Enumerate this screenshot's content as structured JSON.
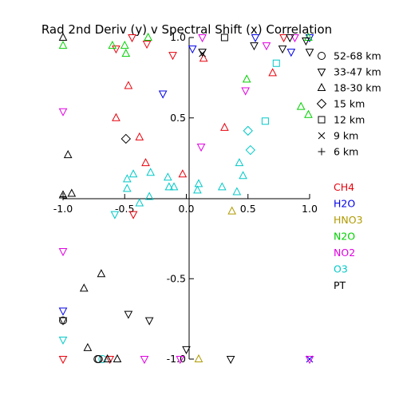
{
  "chart_data": {
    "type": "scatter",
    "title": "Rad 2nd Deriv (y) v Spectral Shift (x) Correlation",
    "xlabel": "",
    "ylabel": "",
    "xlim": [
      -1.0,
      1.0
    ],
    "ylim": [
      -1.0,
      1.0
    ],
    "x_ticks": [
      -1.0,
      -0.5,
      0.0,
      0.5,
      1.0
    ],
    "y_ticks": [
      -1.0,
      -0.5,
      0.5,
      1.0
    ],
    "x_tick_labels": [
      "-1.0",
      "-0.5",
      "0.0",
      "0.5",
      "1.0"
    ],
    "y_tick_labels": [
      "-1.0",
      "-0.5",
      "0.5",
      "1.0"
    ],
    "grid": false,
    "symbol_legend": [
      {
        "marker": "circle",
        "label": "52-68 km"
      },
      {
        "marker": "triangle-down",
        "label": "33-47 km"
      },
      {
        "marker": "triangle-up",
        "label": "18-30 km"
      },
      {
        "marker": "diamond",
        "label": "15 km"
      },
      {
        "marker": "square",
        "label": "12 km"
      },
      {
        "marker": "cross",
        "label": "9 km"
      },
      {
        "marker": "plus",
        "label": "6 km"
      }
    ],
    "color_legend": [
      {
        "label": "CH4",
        "color": "#e8000b"
      },
      {
        "label": "H2O",
        "color": "#0000e6"
      },
      {
        "label": "HNO3",
        "color": "#b09a00"
      },
      {
        "label": "N2O",
        "color": "#00d000"
      },
      {
        "label": "NO2",
        "color": "#e000e0"
      },
      {
        "label": "O3",
        "color": "#00c8c8"
      },
      {
        "label": "PT",
        "color": "#000000"
      }
    ],
    "series": [
      {
        "name": "CH4",
        "color": "#e8000b",
        "points": [
          {
            "x": -0.44,
            "y": 1.0,
            "m": "triangle-down"
          },
          {
            "x": -0.32,
            "y": 0.96,
            "m": "triangle-down"
          },
          {
            "x": -0.57,
            "y": 0.93,
            "m": "triangle-down"
          },
          {
            "x": -0.11,
            "y": 0.89,
            "m": "triangle-down"
          },
          {
            "x": -0.43,
            "y": -0.1,
            "m": "triangle-down"
          },
          {
            "x": -1.0,
            "y": -1.0,
            "m": "triangle-down"
          },
          {
            "x": -0.62,
            "y": -1.0,
            "m": "triangle-down"
          },
          {
            "x": 0.79,
            "y": 1.0,
            "m": "triangle-down"
          },
          {
            "x": -0.47,
            "y": 0.7,
            "m": "triangle-up"
          },
          {
            "x": -0.57,
            "y": 0.5,
            "m": "triangle-up"
          },
          {
            "x": -0.38,
            "y": 0.38,
            "m": "triangle-up"
          },
          {
            "x": -0.33,
            "y": 0.22,
            "m": "triangle-up"
          },
          {
            "x": -0.03,
            "y": 0.15,
            "m": "triangle-up"
          },
          {
            "x": 0.14,
            "y": 0.87,
            "m": "triangle-up"
          },
          {
            "x": 0.31,
            "y": 0.44,
            "m": "triangle-up"
          },
          {
            "x": 0.7,
            "y": 0.78,
            "m": "triangle-up"
          }
        ]
      },
      {
        "name": "H2O",
        "color": "#0000e6",
        "points": [
          {
            "x": 0.05,
            "y": 0.93,
            "m": "triangle-down"
          },
          {
            "x": -0.19,
            "y": 0.65,
            "m": "triangle-down"
          },
          {
            "x": 0.56,
            "y": 1.0,
            "m": "triangle-down"
          },
          {
            "x": 0.85,
            "y": 0.91,
            "m": "triangle-down"
          },
          {
            "x": -1.0,
            "y": -0.7,
            "m": "triangle-down"
          },
          {
            "x": 1.0,
            "y": 1.0,
            "m": "triangle-down"
          },
          {
            "x": 1.0,
            "y": -1.0,
            "m": "cross"
          }
        ]
      },
      {
        "name": "HNO3",
        "color": "#b09a00",
        "points": [
          {
            "x": 0.37,
            "y": -0.08,
            "m": "triangle-up"
          },
          {
            "x": 0.1,
            "y": -1.0,
            "m": "triangle-up"
          }
        ]
      },
      {
        "name": "N2O",
        "color": "#00d000",
        "points": [
          {
            "x": -1.0,
            "y": 0.95,
            "m": "triangle-up"
          },
          {
            "x": -0.6,
            "y": 0.95,
            "m": "triangle-up"
          },
          {
            "x": -0.5,
            "y": 0.95,
            "m": "triangle-up"
          },
          {
            "x": -0.31,
            "y": 1.0,
            "m": "triangle-up"
          },
          {
            "x": -0.49,
            "y": 0.9,
            "m": "triangle-up"
          },
          {
            "x": 0.49,
            "y": 0.74,
            "m": "triangle-up"
          },
          {
            "x": 0.93,
            "y": 0.57,
            "m": "triangle-up"
          },
          {
            "x": 0.99,
            "y": 0.52,
            "m": "triangle-up"
          },
          {
            "x": 0.99,
            "y": 1.0,
            "m": "triangle-up"
          }
        ]
      },
      {
        "name": "NO2",
        "color": "#e000e0",
        "points": [
          {
            "x": -1.0,
            "y": 0.54,
            "m": "triangle-down"
          },
          {
            "x": -1.0,
            "y": -0.33,
            "m": "triangle-down"
          },
          {
            "x": -0.34,
            "y": -1.0,
            "m": "triangle-down"
          },
          {
            "x": 0.13,
            "y": 1.0,
            "m": "triangle-down"
          },
          {
            "x": 0.65,
            "y": 0.95,
            "m": "triangle-down"
          },
          {
            "x": 0.48,
            "y": 0.67,
            "m": "triangle-down"
          },
          {
            "x": 0.12,
            "y": 0.32,
            "m": "triangle-down"
          },
          {
            "x": 0.88,
            "y": 1.0,
            "m": "triangle-down"
          },
          {
            "x": -0.05,
            "y": -1.0,
            "m": "triangle-down"
          },
          {
            "x": 1.0,
            "y": -1.0,
            "m": "triangle-down"
          }
        ]
      },
      {
        "name": "O3",
        "color": "#00c8c8",
        "points": [
          {
            "x": -0.48,
            "y": 0.12,
            "m": "triangle-up"
          },
          {
            "x": -0.43,
            "y": 0.15,
            "m": "triangle-up"
          },
          {
            "x": -0.29,
            "y": 0.16,
            "m": "triangle-up"
          },
          {
            "x": -0.15,
            "y": 0.13,
            "m": "triangle-up"
          },
          {
            "x": -0.14,
            "y": 0.07,
            "m": "triangle-up"
          },
          {
            "x": -0.48,
            "y": 0.06,
            "m": "triangle-up"
          },
          {
            "x": -0.3,
            "y": 0.01,
            "m": "triangle-up"
          },
          {
            "x": -0.38,
            "y": -0.03,
            "m": "triangle-up"
          },
          {
            "x": 0.1,
            "y": 0.09,
            "m": "triangle-up"
          },
          {
            "x": 0.09,
            "y": 0.05,
            "m": "triangle-up"
          },
          {
            "x": 0.29,
            "y": 0.07,
            "m": "triangle-up"
          },
          {
            "x": 0.43,
            "y": 0.22,
            "m": "triangle-up"
          },
          {
            "x": 0.41,
            "y": 0.04,
            "m": "triangle-up"
          },
          {
            "x": 0.46,
            "y": 0.14,
            "m": "triangle-up"
          },
          {
            "x": -0.1,
            "y": 0.07,
            "m": "triangle-up"
          },
          {
            "x": -0.58,
            "y": -0.1,
            "m": "triangle-down"
          },
          {
            "x": -1.0,
            "y": -0.88,
            "m": "triangle-down"
          },
          {
            "x": 0.5,
            "y": 0.42,
            "m": "diamond"
          },
          {
            "x": 0.52,
            "y": 0.3,
            "m": "diamond"
          },
          {
            "x": 0.64,
            "y": 0.48,
            "m": "square"
          },
          {
            "x": 0.73,
            "y": 0.84,
            "m": "square"
          },
          {
            "x": -0.68,
            "y": -1.0,
            "m": "circle"
          }
        ]
      },
      {
        "name": "PT",
        "color": "#000000",
        "points": [
          {
            "x": -1.0,
            "y": 1.0,
            "m": "triangle-up"
          },
          {
            "x": -0.96,
            "y": 0.27,
            "m": "triangle-up"
          },
          {
            "x": -0.93,
            "y": 0.03,
            "m": "triangle-up"
          },
          {
            "x": -1.0,
            "y": 0.02,
            "m": "triangle-up"
          },
          {
            "x": -0.83,
            "y": -0.56,
            "m": "triangle-up"
          },
          {
            "x": -0.69,
            "y": -0.47,
            "m": "triangle-up"
          },
          {
            "x": -0.8,
            "y": -0.93,
            "m": "triangle-up"
          },
          {
            "x": -0.56,
            "y": -1.0,
            "m": "triangle-up"
          },
          {
            "x": -0.64,
            "y": -1.0,
            "m": "triangle-up"
          },
          {
            "x": -0.47,
            "y": -0.72,
            "m": "triangle-down"
          },
          {
            "x": -0.3,
            "y": -0.76,
            "m": "triangle-down"
          },
          {
            "x": -1.0,
            "y": -0.76,
            "m": "triangle-down"
          },
          {
            "x": 0.0,
            "y": -0.94,
            "m": "triangle-down"
          },
          {
            "x": 0.36,
            "y": -1.0,
            "m": "triangle-down"
          },
          {
            "x": 0.13,
            "y": 0.91,
            "m": "triangle-down"
          },
          {
            "x": 0.55,
            "y": 0.95,
            "m": "triangle-down"
          },
          {
            "x": 0.97,
            "y": 0.98,
            "m": "triangle-down"
          },
          {
            "x": 1.0,
            "y": 0.91,
            "m": "triangle-down"
          },
          {
            "x": 0.78,
            "y": 0.93,
            "m": "triangle-down"
          },
          {
            "x": 0.84,
            "y": 1.0,
            "m": "triangle-down"
          },
          {
            "x": -0.49,
            "y": 0.37,
            "m": "diamond"
          },
          {
            "x": 0.31,
            "y": 1.0,
            "m": "square"
          },
          {
            "x": -1.0,
            "y": -0.76,
            "m": "circle"
          },
          {
            "x": -0.71,
            "y": -1.0,
            "m": "circle"
          },
          {
            "x": -0.72,
            "y": -1.0,
            "m": "circle"
          },
          {
            "x": 0.13,
            "y": 0.9,
            "m": "cross"
          },
          {
            "x": -1.0,
            "y": 0.01,
            "m": "plus"
          }
        ]
      }
    ]
  }
}
